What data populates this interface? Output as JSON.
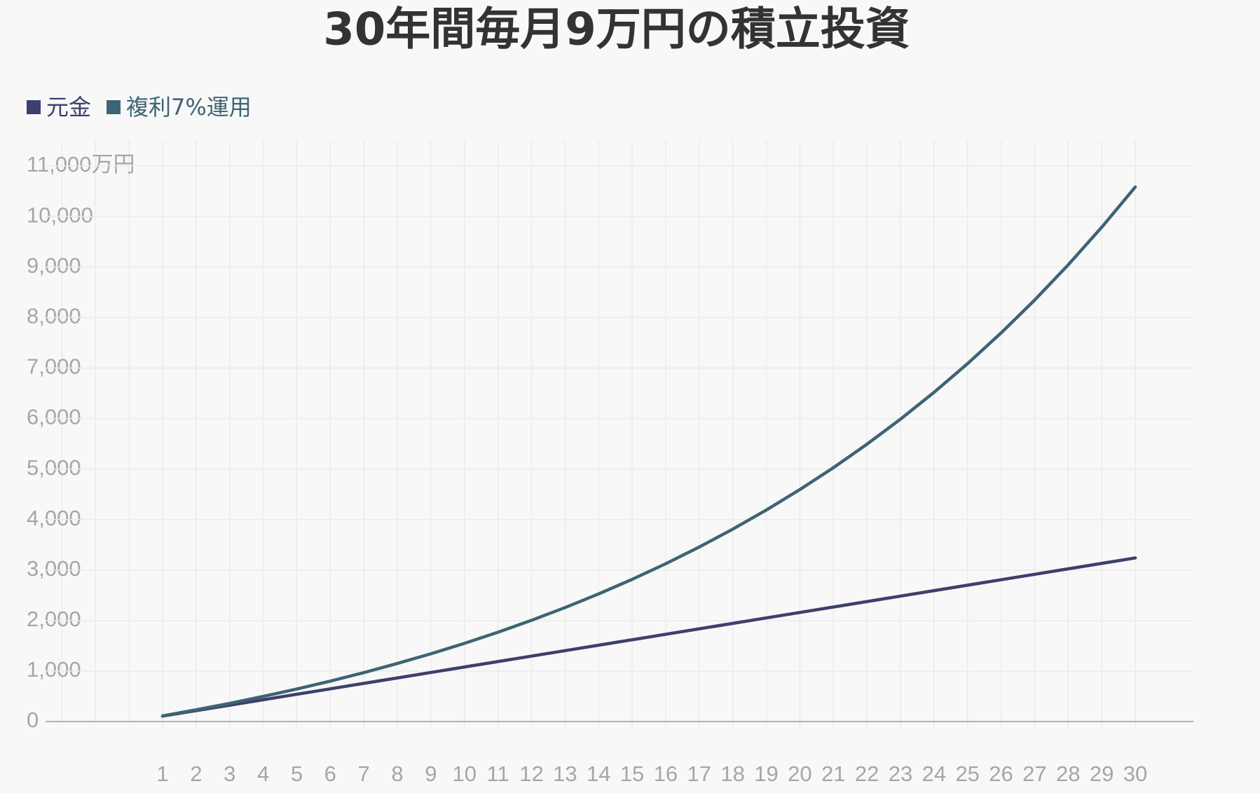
{
  "chart_data": {
    "type": "line",
    "title": "30年間毎月9万円の積立投資",
    "categories": [
      "1",
      "2",
      "3",
      "4",
      "5",
      "6",
      "7",
      "8",
      "9",
      "10",
      "11",
      "12",
      "13",
      "14",
      "15",
      "16",
      "17",
      "18",
      "19",
      "20",
      "21",
      "22",
      "23",
      "24",
      "25",
      "26",
      "27",
      "28",
      "29",
      "30"
    ],
    "series": [
      {
        "name": "元金",
        "color": "#3d3f6e",
        "values": [
          108,
          216,
          324,
          432,
          540,
          648,
          756,
          864,
          972,
          1080,
          1188,
          1296,
          1404,
          1512,
          1620,
          1728,
          1836,
          1944,
          2052,
          2160,
          2268,
          2376,
          2484,
          2592,
          2700,
          2808,
          2916,
          3024,
          3132,
          3240
        ]
      },
      {
        "name": "複利7%運用",
        "color": "#3e6474",
        "values": [
          112,
          232,
          360,
          498,
          644,
          801,
          969,
          1150,
          1342,
          1548,
          1769,
          2005,
          2257,
          2527,
          2816,
          3125,
          3456,
          3810,
          4189,
          4594,
          5027,
          5492,
          5988,
          6519,
          7087,
          7696,
          8346,
          9043,
          9788,
          10585
        ]
      }
    ],
    "ylim": [
      0,
      11500
    ],
    "yticks": [
      0,
      {
        "value": 1000,
        "label": "1,000"
      },
      {
        "value": 2000,
        "label": "2,000"
      },
      {
        "value": 3000,
        "label": "3,000"
      },
      {
        "value": 4000,
        "label": "4,000"
      },
      {
        "value": 5000,
        "label": "5,000"
      },
      {
        "value": 6000,
        "label": "6,000"
      },
      {
        "value": 7000,
        "label": "7,000"
      },
      {
        "value": 8000,
        "label": "8,000"
      },
      {
        "value": 9000,
        "label": "9,000"
      },
      {
        "value": 10000,
        "label": "10,000"
      },
      {
        "value": 11000,
        "label": "11,000万円"
      }
    ],
    "grid": true,
    "legend": "top-left"
  }
}
